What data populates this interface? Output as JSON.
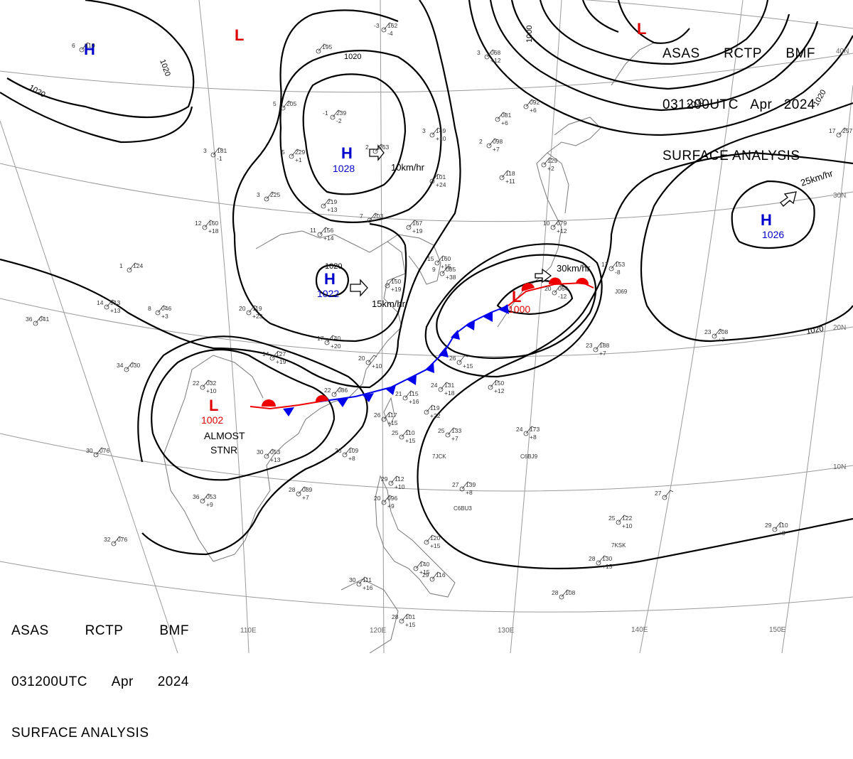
{
  "header": {
    "center": "ASAS",
    "station": "RCTP",
    "agency": "BMF",
    "datetime": "031200UTC",
    "month": "Apr",
    "year": "2024",
    "title": "SURFACE ANALYSIS"
  },
  "isobars": [
    {
      "label": "1020"
    },
    {
      "label": "1020"
    },
    {
      "label": "1020"
    },
    {
      "label": "1020"
    },
    {
      "label": "1020"
    },
    {
      "label": "1020"
    },
    {
      "label": "1000"
    },
    {
      "label": "1000"
    }
  ],
  "pressure_systems": [
    {
      "type": "H",
      "value": "",
      "color": "#0000cc"
    },
    {
      "type": "L",
      "value": "",
      "color": "#dd0000"
    },
    {
      "type": "H",
      "value": "1028",
      "color": "#0000cc"
    },
    {
      "type": "H",
      "value": "1022",
      "color": "#0000cc"
    },
    {
      "type": "H",
      "value": "1026",
      "color": "#0000cc"
    },
    {
      "type": "L",
      "value": "1000",
      "color": "#dd0000"
    },
    {
      "type": "L",
      "value": "1002",
      "color": "#dd0000"
    },
    {
      "type": "L",
      "value": "",
      "color": "#dd0000"
    }
  ],
  "motion_vectors": [
    {
      "label": "10km/hr"
    },
    {
      "label": "15km/hr"
    },
    {
      "label": "30km/hr"
    },
    {
      "label": "25km/hr"
    }
  ],
  "annotations": {
    "stationary_note_line1": "ALMOST",
    "stationary_note_line2": "STNR"
  },
  "longitude_labels": [
    "110E",
    "120E",
    "130E",
    "140E",
    "150E"
  ],
  "latitude_labels": [
    "40N",
    "30N",
    "20N",
    "10N"
  ],
  "station_reports": [
    {
      "t": "-3",
      "p": "162",
      "d": "-4"
    },
    {
      "t": "5",
      "p": "205",
      "d": ""
    },
    {
      "t": "-1",
      "p": "239",
      "d": "-2"
    },
    {
      "t": "5",
      "p": "229",
      "d": "+1"
    },
    {
      "t": "3",
      "p": "181",
      "d": "-1"
    },
    {
      "t": "3",
      "p": "225",
      "d": ""
    },
    {
      "t": "",
      "p": "219",
      "d": "+13"
    },
    {
      "t": "2",
      "p": "263",
      "d": ""
    },
    {
      "t": "3",
      "p": "149",
      "d": "+10"
    },
    {
      "t": "2",
      "p": "098",
      "d": "+7"
    },
    {
      "t": "",
      "p": "101",
      "d": "+24"
    },
    {
      "t": "",
      "p": "118",
      "d": "+11"
    },
    {
      "t": "12",
      "p": "160",
      "d": "+18"
    },
    {
      "t": "11",
      "p": "156",
      "d": "+14"
    },
    {
      "t": "7",
      "p": "203",
      "d": ""
    },
    {
      "t": "",
      "p": "167",
      "d": "+19"
    },
    {
      "t": "15",
      "p": "160",
      "d": "+15"
    },
    {
      "t": "9",
      "p": "085",
      "d": "+38"
    },
    {
      "t": "",
      "p": "150",
      "d": "+19"
    },
    {
      "t": "1",
      "p": "124",
      "d": ""
    },
    {
      "t": "8",
      "p": "046",
      "d": "+3"
    },
    {
      "t": "14",
      "p": "913",
      "d": "+13"
    },
    {
      "t": "20",
      "p": "119",
      "d": "+23"
    },
    {
      "t": "17",
      "p": "140",
      "d": "+20"
    },
    {
      "t": "14",
      "p": "127",
      "d": "+19"
    },
    {
      "t": "20",
      "p": "",
      "d": "+10"
    },
    {
      "t": "36",
      "p": "041",
      "d": ""
    },
    {
      "t": "34",
      "p": "030",
      "d": ""
    },
    {
      "t": "22",
      "p": "032",
      "d": "+10"
    },
    {
      "t": "22",
      "p": "086",
      "d": ""
    },
    {
      "t": "26",
      "p": "",
      "d": "+15"
    },
    {
      "t": "21",
      "p": "115",
      "d": "+16"
    },
    {
      "t": "",
      "p": "119",
      "d": "+22"
    },
    {
      "t": "24",
      "p": "131",
      "d": "+18"
    },
    {
      "t": "",
      "p": "150",
      "d": "+12"
    },
    {
      "t": "26",
      "p": "117",
      "d": "+15"
    },
    {
      "t": "25",
      "p": "110",
      "d": "+15"
    },
    {
      "t": "25",
      "p": "133",
      "d": "+7"
    },
    {
      "t": "24",
      "p": "173",
      "d": "+8"
    },
    {
      "t": "30",
      "p": "053",
      "d": "+13"
    },
    {
      "t": "26",
      "p": "109",
      "d": "+8"
    },
    {
      "t": "28",
      "p": "089",
      "d": "+7"
    },
    {
      "t": "36",
      "p": "053",
      "d": "+9"
    },
    {
      "t": "30",
      "p": "076",
      "d": ""
    },
    {
      "t": "32",
      "p": "076",
      "d": ""
    },
    {
      "t": "29",
      "p": "112",
      "d": "+10"
    },
    {
      "t": "20",
      "p": "096",
      "d": "+9"
    },
    {
      "t": "27",
      "p": "139",
      "d": "+8"
    },
    {
      "t": "27",
      "p": "",
      "d": ""
    },
    {
      "t": "25",
      "p": "122",
      "d": "+10"
    },
    {
      "t": "28",
      "p": "130",
      "d": "+15"
    },
    {
      "t": "29",
      "p": "110",
      "d": "+8"
    },
    {
      "t": "28",
      "p": "108",
      "d": ""
    },
    {
      "t": "30",
      "p": "111",
      "d": "+16"
    },
    {
      "t": "",
      "p": "140",
      "d": "+15"
    },
    {
      "t": "29",
      "p": "116",
      "d": ""
    },
    {
      "t": "28",
      "p": "101",
      "d": "+15"
    },
    {
      "t": "",
      "p": "120",
      "d": "+15"
    },
    {
      "t": "23",
      "p": "188",
      "d": "+7"
    },
    {
      "t": "23",
      "p": "208",
      "d": "+7"
    },
    {
      "t": "17",
      "p": "153",
      "d": "-8"
    },
    {
      "t": "10",
      "p": "079",
      "d": "+12"
    },
    {
      "t": "20",
      "p": "064",
      "d": "-12"
    },
    {
      "t": "17",
      "p": "257",
      "d": ""
    },
    {
      "t": "3",
      "p": "068",
      "d": "+12"
    },
    {
      "t": "",
      "p": "081",
      "d": "+6"
    },
    {
      "t": "",
      "p": "092",
      "d": "+6"
    },
    {
      "t": "",
      "p": "129",
      "d": "+2"
    },
    {
      "t": "6",
      "p": "110",
      "d": ""
    },
    {
      "t": "",
      "p": "195",
      "d": ""
    }
  ],
  "ship_callsigns": [
    "7JCK",
    "C6BJ9",
    "C6BU3",
    "7KSK",
    "J069"
  ],
  "colors": {
    "isobar": "#000000",
    "high": "#0000cc",
    "low": "#dd0000",
    "cold_front": "#0000ee",
    "warm_front": "#ee0000",
    "coastline": "#777777",
    "graticule": "#9a9a9a"
  }
}
